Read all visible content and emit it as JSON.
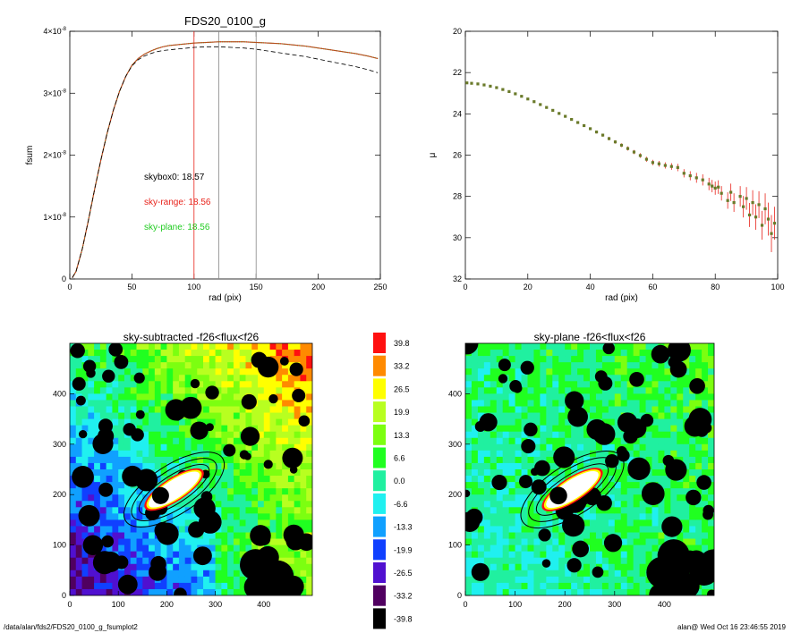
{
  "footer": {
    "left": "/data/alan/fds2/FDS20_0100_g_fsumplot2",
    "right": "alan@  Wed Oct 16 23:46:55 2019"
  },
  "colors": {
    "black_curve": "#000000",
    "red_curve": "#e8231b",
    "green_curve": "#22cc22",
    "grey_line": "#888888",
    "points": "#6a7a2a",
    "errors": "#e8231b"
  },
  "chart_data": [
    {
      "type": "line",
      "title": "FDS20_0100_g",
      "xlabel": "rad (pix)",
      "ylabel": "fsum",
      "xlim": [
        0,
        250
      ],
      "ylim": [
        0,
        4e-08
      ],
      "x_ticks": [
        "0",
        "50",
        "100",
        "150",
        "200",
        "250"
      ],
      "y_ticks": [
        "0",
        "1×10⁻⁸",
        "2×10⁻⁸",
        "3×10⁻⁸",
        "4×10⁻⁸"
      ],
      "x_tick_values": [
        0,
        50,
        100,
        150,
        200,
        250
      ],
      "y_tick_values": [
        0,
        1e-08,
        2e-08,
        3e-08,
        4e-08
      ],
      "vlines": [
        {
          "x": 100,
          "color": "#e8231b"
        },
        {
          "x": 120,
          "color": "#888888"
        },
        {
          "x": 150,
          "color": "#888888"
        }
      ],
      "annotations": [
        {
          "text": "skybox0: 18.57",
          "color": "#000000"
        },
        {
          "text": "sky-range: 18.56",
          "color": "#e8231b"
        },
        {
          "text": "sky-plane: 18.56",
          "color": "#22cc22"
        }
      ],
      "series": [
        {
          "style": "solid-red-green",
          "x": [
            2,
            5,
            10,
            15,
            20,
            25,
            30,
            35,
            40,
            45,
            50,
            55,
            60,
            65,
            70,
            75,
            80,
            85,
            90,
            95,
            100,
            110,
            120,
            130,
            140,
            150,
            160,
            170,
            180,
            190,
            200,
            210,
            220,
            230,
            240,
            248
          ],
          "y": [
            2e-10,
            1.2e-09,
            4.8e-09,
            9.5e-09,
            1.45e-08,
            1.92e-08,
            2.35e-08,
            2.72e-08,
            3.03e-08,
            3.27e-08,
            3.45e-08,
            3.56e-08,
            3.63e-08,
            3.68e-08,
            3.72e-08,
            3.75e-08,
            3.77e-08,
            3.78e-08,
            3.79e-08,
            3.8e-08,
            3.81e-08,
            3.82e-08,
            3.83e-08,
            3.83e-08,
            3.83e-08,
            3.82e-08,
            3.81e-08,
            3.8e-08,
            3.78e-08,
            3.76e-08,
            3.73e-08,
            3.7e-08,
            3.67e-08,
            3.64e-08,
            3.6e-08,
            3.56e-08
          ]
        },
        {
          "style": "dashed-black",
          "x": [
            2,
            5,
            10,
            15,
            20,
            25,
            30,
            35,
            40,
            45,
            50,
            55,
            60,
            65,
            70,
            75,
            80,
            85,
            90,
            95,
            100,
            110,
            120,
            130,
            140,
            150,
            160,
            170,
            180,
            190,
            200,
            210,
            220,
            230,
            240,
            248
          ],
          "y": [
            2e-10,
            1.2e-09,
            4.8e-09,
            9.5e-09,
            1.45e-08,
            1.92e-08,
            2.35e-08,
            2.72e-08,
            3.03e-08,
            3.27e-08,
            3.44e-08,
            3.54e-08,
            3.6e-08,
            3.64e-08,
            3.67e-08,
            3.69e-08,
            3.7e-08,
            3.71e-08,
            3.72e-08,
            3.73e-08,
            3.74e-08,
            3.75e-08,
            3.75e-08,
            3.74e-08,
            3.73e-08,
            3.71e-08,
            3.68e-08,
            3.65e-08,
            3.62e-08,
            3.59e-08,
            3.55e-08,
            3.51e-08,
            3.47e-08,
            3.43e-08,
            3.38e-08,
            3.33e-08
          ]
        }
      ]
    },
    {
      "type": "scatter",
      "title": "",
      "xlabel": "rad (pix)",
      "ylabel": "μ",
      "xlim": [
        0,
        100
      ],
      "ylim": [
        32,
        20
      ],
      "x_ticks": [
        "0",
        "20",
        "40",
        "60",
        "80",
        "100"
      ],
      "y_ticks": [
        "20",
        "22",
        "24",
        "26",
        "28",
        "30",
        "32"
      ],
      "x_tick_values": [
        0,
        20,
        40,
        60,
        80,
        100
      ],
      "y_tick_values": [
        20,
        22,
        24,
        26,
        28,
        30,
        32
      ],
      "series": [
        {
          "x": [
            0.5,
            2,
            4,
            6,
            8,
            10,
            12,
            14,
            16,
            18,
            20,
            22,
            24,
            26,
            28,
            30,
            32,
            34,
            36,
            38,
            40,
            42,
            44,
            46,
            48,
            50,
            52,
            54,
            56,
            58,
            60,
            62,
            64,
            66,
            68,
            70,
            72,
            74,
            76,
            78,
            79,
            80,
            81,
            82,
            84,
            85,
            86,
            88,
            89,
            90,
            91,
            92,
            93,
            94,
            95,
            96,
            97,
            98,
            99
          ],
          "y": [
            22.5,
            22.52,
            22.55,
            22.6,
            22.66,
            22.73,
            22.82,
            22.92,
            23.03,
            23.15,
            23.28,
            23.41,
            23.55,
            23.69,
            23.83,
            23.98,
            24.12,
            24.27,
            24.42,
            24.57,
            24.72,
            24.88,
            25.03,
            25.2,
            25.36,
            25.52,
            25.68,
            25.85,
            26.02,
            26.2,
            26.36,
            26.42,
            26.5,
            26.55,
            26.6,
            26.88,
            27.0,
            27.1,
            27.2,
            27.4,
            27.5,
            27.6,
            27.55,
            27.85,
            28.2,
            27.8,
            28.3,
            28.0,
            28.5,
            28.1,
            28.9,
            28.3,
            29.0,
            28.4,
            29.4,
            28.6,
            29.1,
            29.8,
            29.3
          ],
          "err": [
            0.03,
            0.03,
            0.03,
            0.03,
            0.03,
            0.03,
            0.03,
            0.03,
            0.03,
            0.03,
            0.04,
            0.04,
            0.04,
            0.04,
            0.05,
            0.05,
            0.05,
            0.05,
            0.06,
            0.06,
            0.06,
            0.07,
            0.07,
            0.08,
            0.08,
            0.09,
            0.1,
            0.1,
            0.11,
            0.12,
            0.13,
            0.14,
            0.15,
            0.16,
            0.18,
            0.2,
            0.22,
            0.24,
            0.27,
            0.3,
            0.3,
            0.32,
            0.33,
            0.35,
            0.4,
            0.42,
            0.45,
            0.5,
            0.52,
            0.55,
            0.58,
            0.6,
            0.62,
            0.65,
            0.7,
            0.75,
            0.8,
            0.9,
            0.8
          ]
        }
      ]
    },
    {
      "type": "heatmap",
      "title": "sky-subtracted -f26<flux<f26",
      "xlim": [
        0,
        500
      ],
      "ylim": [
        0,
        500
      ],
      "x_ticks": [
        "0",
        "100",
        "200",
        "300",
        "400"
      ],
      "y_ticks": [
        "0",
        "100",
        "200",
        "300",
        "400"
      ],
      "x_tick_values": [
        0,
        100,
        200,
        300,
        400
      ],
      "y_tick_values": [
        0,
        100,
        200,
        300,
        400
      ]
    },
    {
      "type": "heatmap",
      "title": "sky-plane -f26<flux<f26",
      "xlim": [
        0,
        500
      ],
      "ylim": [
        0,
        500
      ],
      "x_ticks": [
        "0",
        "100",
        "200",
        "300",
        "400"
      ],
      "y_ticks": [
        "0",
        "100",
        "200",
        "300",
        "400"
      ],
      "x_tick_values": [
        0,
        100,
        200,
        300,
        400
      ],
      "y_tick_values": [
        0,
        100,
        200,
        300,
        400
      ]
    }
  ],
  "colorbar": {
    "labels": [
      "39.8",
      "33.2",
      "26.5",
      "19.9",
      "13.3",
      "6.6",
      "0.0",
      "-6.6",
      "-13.3",
      "-19.9",
      "-26.5",
      "-33.2",
      "-39.8"
    ],
    "colors": [
      "#ff1010",
      "#ff8a00",
      "#ffff00",
      "#b8ff20",
      "#7cff10",
      "#20ff20",
      "#20f0a0",
      "#20f0f0",
      "#10a0ff",
      "#1040ff",
      "#5010d0",
      "#500060",
      "#000000"
    ]
  },
  "ellipse": {
    "cx": 215,
    "cy": 210,
    "rx_inner": 70,
    "ry_inner": 18,
    "angle_deg": 33
  }
}
